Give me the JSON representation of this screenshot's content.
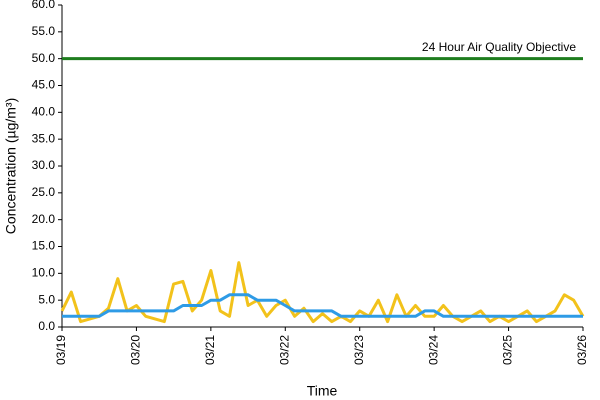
{
  "chart_data": {
    "type": "line",
    "y_label": "Concentration (µg/m³)",
    "x_label": "Time",
    "categories": [
      "03/19",
      null,
      null,
      null,
      null,
      null,
      null,
      null,
      "03/20",
      null,
      null,
      null,
      null,
      null,
      null,
      null,
      "03/21",
      null,
      null,
      null,
      null,
      null,
      null,
      null,
      "03/22",
      null,
      null,
      null,
      null,
      null,
      null,
      null,
      "03/23",
      null,
      null,
      null,
      null,
      null,
      null,
      null,
      "03/24",
      null,
      null,
      null,
      null,
      null,
      null,
      null,
      "03/25",
      null,
      null,
      null,
      null,
      null,
      null,
      null,
      "03/26"
    ],
    "series": [
      {
        "color": "#f2c21b",
        "values": [
          3,
          6.5,
          1,
          1.5,
          2,
          3.5,
          9,
          3,
          4,
          2,
          1.5,
          1,
          8,
          8.5,
          3,
          5,
          10.5,
          3,
          2,
          12,
          4,
          5,
          2,
          4,
          5,
          2,
          3.5,
          1,
          2.5,
          1,
          2,
          1,
          3,
          2,
          5,
          1,
          6,
          2,
          4,
          2,
          2,
          4,
          2,
          1,
          2,
          3,
          1,
          2,
          1,
          2,
          3,
          1,
          2,
          3,
          6,
          5,
          2
        ]
      },
      {
        "color": "#2e9be6",
        "values": [
          2,
          2,
          2,
          2,
          2,
          3,
          3,
          3,
          3,
          3,
          3,
          3,
          3,
          4,
          4,
          4,
          5,
          5,
          6,
          6,
          6,
          5,
          5,
          5,
          4,
          3,
          3,
          3,
          3,
          3,
          2,
          2,
          2,
          2,
          2,
          2,
          2,
          2,
          2,
          3,
          3,
          2,
          2,
          2,
          2,
          2,
          2,
          2,
          2,
          2,
          2,
          2,
          2,
          2,
          2,
          2,
          2
        ]
      }
    ],
    "objective": {
      "value": 50,
      "label": "24 Hour Air Quality Objective",
      "color": "#1e7d1e"
    },
    "ylim": [
      0,
      60
    ],
    "yticks": [
      {
        "value": 0,
        "label": "0.0"
      },
      {
        "value": 5,
        "label": "5.0"
      },
      {
        "value": 10,
        "label": "10.0"
      },
      {
        "value": 15,
        "label": "15.0"
      },
      {
        "value": 20,
        "label": "20.0"
      },
      {
        "value": 25,
        "label": "25.0"
      },
      {
        "value": 30,
        "label": "30.0"
      },
      {
        "value": 35,
        "label": "35.0"
      },
      {
        "value": 40,
        "label": "40.0"
      },
      {
        "value": 45,
        "label": "45.0"
      },
      {
        "value": 50,
        "label": "50.0"
      },
      {
        "value": 55,
        "label": "55.0"
      },
      {
        "value": 60,
        "label": "60.0"
      }
    ],
    "grid": false
  }
}
